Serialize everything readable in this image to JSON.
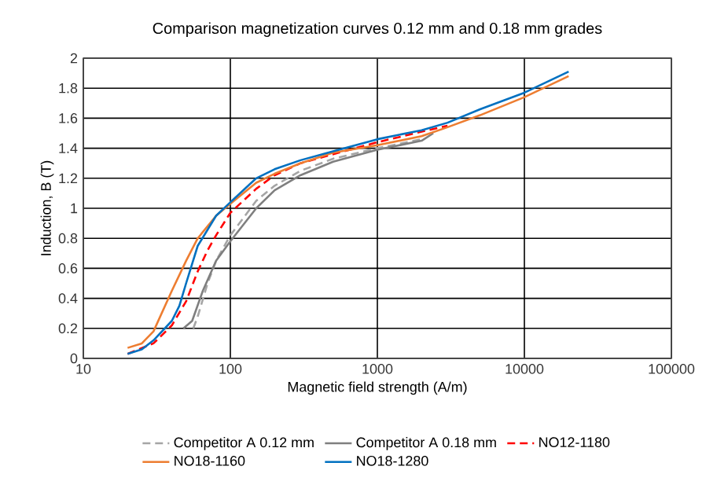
{
  "chart_data": {
    "type": "line",
    "title": "Comparison magnetization curves 0.12 mm and 0.18 mm grades",
    "xlabel": "Magnetic field strength (A/m)",
    "ylabel": "Induction, B (T)",
    "log": "x",
    "grid": true,
    "legend": "bottom",
    "xlim": [
      10,
      100000
    ],
    "xticks": [
      10,
      100,
      1000,
      10000,
      100000
    ],
    "ylim": [
      0,
      2
    ],
    "yticks": [
      0,
      0.2,
      0.4,
      0.6,
      0.8,
      1,
      1.2,
      1.4,
      1.6,
      1.8,
      2
    ],
    "series": [
      {
        "name": "Competitor A 0.12 mm",
        "color": "#a5a5a5",
        "line_style": "dashed",
        "x": [
          56,
          60,
          70,
          80,
          100,
          150,
          200,
          300,
          500,
          1000,
          2000
        ],
        "values": [
          0.2,
          0.28,
          0.5,
          0.65,
          0.82,
          1.05,
          1.15,
          1.25,
          1.33,
          1.4,
          1.46
        ]
      },
      {
        "name": "Competitor A 0.18 mm",
        "color": "#7f7f7f",
        "line_style": "solid",
        "x": [
          48,
          55,
          65,
          80,
          100,
          150,
          200,
          300,
          500,
          1000,
          2000,
          2400
        ],
        "values": [
          0.2,
          0.25,
          0.45,
          0.65,
          0.78,
          1.0,
          1.12,
          1.22,
          1.31,
          1.39,
          1.45,
          1.5
        ]
      },
      {
        "name": "NO12-1180",
        "color": "#ff0000",
        "line_style": "dashed",
        "x": [
          20,
          30,
          40,
          50,
          60,
          70,
          80,
          100,
          150,
          200,
          300,
          500,
          1000,
          2000,
          3000
        ],
        "values": [
          0.03,
          0.1,
          0.22,
          0.38,
          0.58,
          0.72,
          0.82,
          0.97,
          1.13,
          1.22,
          1.3,
          1.36,
          1.44,
          1.51,
          1.55
        ]
      },
      {
        "name": "NO18-1160",
        "color": "#ed7d31",
        "line_style": "solid",
        "x": [
          20,
          25,
          30,
          40,
          50,
          60,
          80,
          100,
          150,
          200,
          300,
          500,
          1000,
          2000,
          3000,
          5000,
          10000,
          20000
        ],
        "values": [
          0.07,
          0.1,
          0.18,
          0.45,
          0.65,
          0.8,
          0.95,
          1.03,
          1.17,
          1.23,
          1.3,
          1.37,
          1.42,
          1.48,
          1.54,
          1.62,
          1.74,
          1.88
        ]
      },
      {
        "name": "NO18-1280",
        "color": "#0070c0",
        "line_style": "solid",
        "x": [
          20,
          25,
          30,
          40,
          45,
          50,
          60,
          80,
          100,
          150,
          200,
          300,
          500,
          1000,
          2000,
          3000,
          5000,
          10000,
          20000
        ],
        "values": [
          0.03,
          0.06,
          0.12,
          0.25,
          0.35,
          0.5,
          0.75,
          0.95,
          1.04,
          1.2,
          1.26,
          1.32,
          1.38,
          1.46,
          1.52,
          1.57,
          1.66,
          1.77,
          1.91
        ]
      }
    ]
  }
}
